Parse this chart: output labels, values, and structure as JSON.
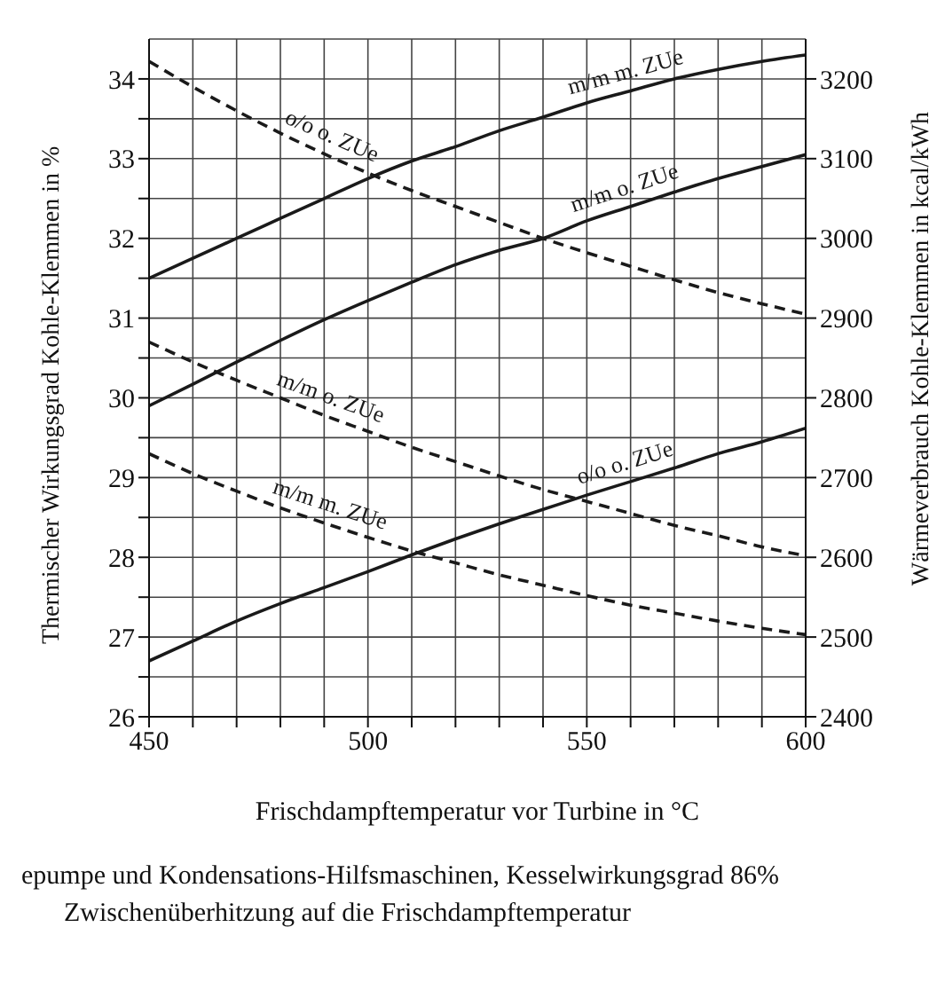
{
  "chart_data": {
    "type": "line",
    "xlabel": "Frischdampftemperatur vor Turbine in °C",
    "ylabel": "Thermischer Wirkungsgrad Kohle-Klemmen in %",
    "y2label": "Wärmeverbrauch Kohle-Klemmen in kcal/kWh",
    "x": [
      450,
      460,
      470,
      480,
      490,
      500,
      510,
      520,
      530,
      540,
      550,
      560,
      570,
      580,
      590,
      600
    ],
    "series": [
      {
        "name": "m/m m. ZUe",
        "color": "#1a1a1a",
        "axis": "y",
        "line_style": "solid",
        "values": [
          31.5,
          31.75,
          32.0,
          32.25,
          32.5,
          32.75,
          32.97,
          33.15,
          33.35,
          33.52,
          33.7,
          33.85,
          34.0,
          34.12,
          34.22,
          34.3
        ]
      },
      {
        "name": "m/m o. ZUe",
        "color": "#1a1a1a",
        "axis": "y",
        "line_style": "solid",
        "values": [
          29.9,
          30.17,
          30.45,
          30.72,
          30.98,
          31.22,
          31.45,
          31.67,
          31.85,
          32.0,
          32.22,
          32.4,
          32.58,
          32.75,
          32.9,
          33.05
        ]
      },
      {
        "name": "o/o o. ZUe",
        "color": "#1a1a1a",
        "axis": "y",
        "line_style": "solid",
        "values": [
          26.7,
          26.95,
          27.2,
          27.42,
          27.62,
          27.82,
          28.03,
          28.23,
          28.42,
          28.6,
          28.78,
          28.95,
          29.12,
          29.3,
          29.45,
          29.62
        ]
      },
      {
        "name": "o/o o. ZUe",
        "color": "#1a1a1a",
        "axis": "y2",
        "line_style": "dashed",
        "values": [
          3222,
          3190,
          3160,
          3132,
          3106,
          3082,
          3060,
          3040,
          3020,
          3000,
          2982,
          2965,
          2948,
          2932,
          2918,
          2905
        ]
      },
      {
        "name": "m/m o. ZUe",
        "color": "#1a1a1a",
        "axis": "y2",
        "line_style": "dashed",
        "values": [
          2870,
          2845,
          2822,
          2800,
          2778,
          2758,
          2738,
          2720,
          2702,
          2685,
          2670,
          2655,
          2640,
          2627,
          2613,
          2602
        ]
      },
      {
        "name": "m/m m. ZUe",
        "color": "#1a1a1a",
        "axis": "y2",
        "line_style": "dashed",
        "values": [
          2730,
          2705,
          2683,
          2662,
          2643,
          2625,
          2608,
          2593,
          2578,
          2565,
          2552,
          2540,
          2530,
          2520,
          2511,
          2503
        ]
      }
    ],
    "xlim": [
      450,
      600
    ],
    "xticks": [
      450,
      {
        "value": 460,
        "label": null
      },
      {
        "value": 470,
        "label": null
      },
      {
        "value": 480,
        "label": null
      },
      {
        "value": 490,
        "label": null
      },
      500,
      {
        "value": 510,
        "label": null
      },
      {
        "value": 520,
        "label": null
      },
      {
        "value": 530,
        "label": null
      },
      {
        "value": 540,
        "label": null
      },
      550,
      {
        "value": 560,
        "label": null
      },
      {
        "value": 570,
        "label": null
      },
      {
        "value": 580,
        "label": null
      },
      {
        "value": 590,
        "label": null
      },
      600
    ],
    "ylim": [
      26,
      34.5
    ],
    "yticks": [
      26,
      {
        "value": 26.5,
        "label": null
      },
      27,
      {
        "value": 27.5,
        "label": null
      },
      28,
      {
        "value": 28.5,
        "label": null
      },
      29,
      {
        "value": 29.5,
        "label": null
      },
      30,
      {
        "value": 30.5,
        "label": null
      },
      31,
      {
        "value": 31.5,
        "label": null
      },
      32,
      {
        "value": 32.5,
        "label": null
      },
      33,
      {
        "value": 33.5,
        "label": null
      },
      34
    ],
    "y2lim": [
      2400,
      3250
    ],
    "y2ticks": [
      2400,
      2500,
      2600,
      2700,
      2800,
      2900,
      3000,
      3100,
      3200
    ],
    "grid": true,
    "marker": "none",
    "legend": false,
    "annotations": [
      "epumpe und Kondensations-Hilfsmaschinen, Kesselwirkungsgrad 86%",
      "Zwischenüberhitzung auf die Frischdampftemperatur"
    ]
  }
}
